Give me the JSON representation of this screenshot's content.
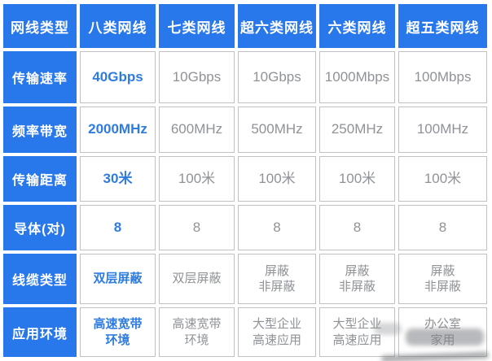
{
  "colors": {
    "header_blue": "#2978EB",
    "value_blue": "#2E7CE0",
    "value_gray": "#8F9296",
    "grid_line": "#C1C1C1"
  },
  "table": {
    "header": [
      "网线类型",
      "八类网线",
      "七类网线",
      "超六类网线",
      "六类网线",
      "超五类网线"
    ],
    "rows": [
      {
        "label": "传输速率",
        "values": [
          "40Gbps",
          "10Gbps",
          "10Gbps",
          "1000Mbps",
          "100Mbps"
        ]
      },
      {
        "label": "频率带宽",
        "values": [
          "2000MHz",
          "600MHz",
          "500MHz",
          "250MHz",
          "100MHz"
        ]
      },
      {
        "label": "传输距离",
        "values": [
          "30米",
          "100米",
          "100米",
          "100米",
          "100米"
        ]
      },
      {
        "label": "导体(对)",
        "values": [
          "8",
          "8",
          "8",
          "8",
          "8"
        ]
      },
      {
        "label": "线缆类型",
        "values": [
          "双层屏蔽",
          "双层屏蔽",
          "屏蔽\n非屏蔽",
          "屏蔽\n非屏蔽",
          "屏蔽\n非屏蔽"
        ]
      },
      {
        "label": "应用环境",
        "values": [
          "高速宽带\n环境",
          "高速宽带\n环境",
          "大型企业\n高速应用",
          "大型企业\n高速应用",
          "办公室\n家用"
        ]
      }
    ]
  }
}
